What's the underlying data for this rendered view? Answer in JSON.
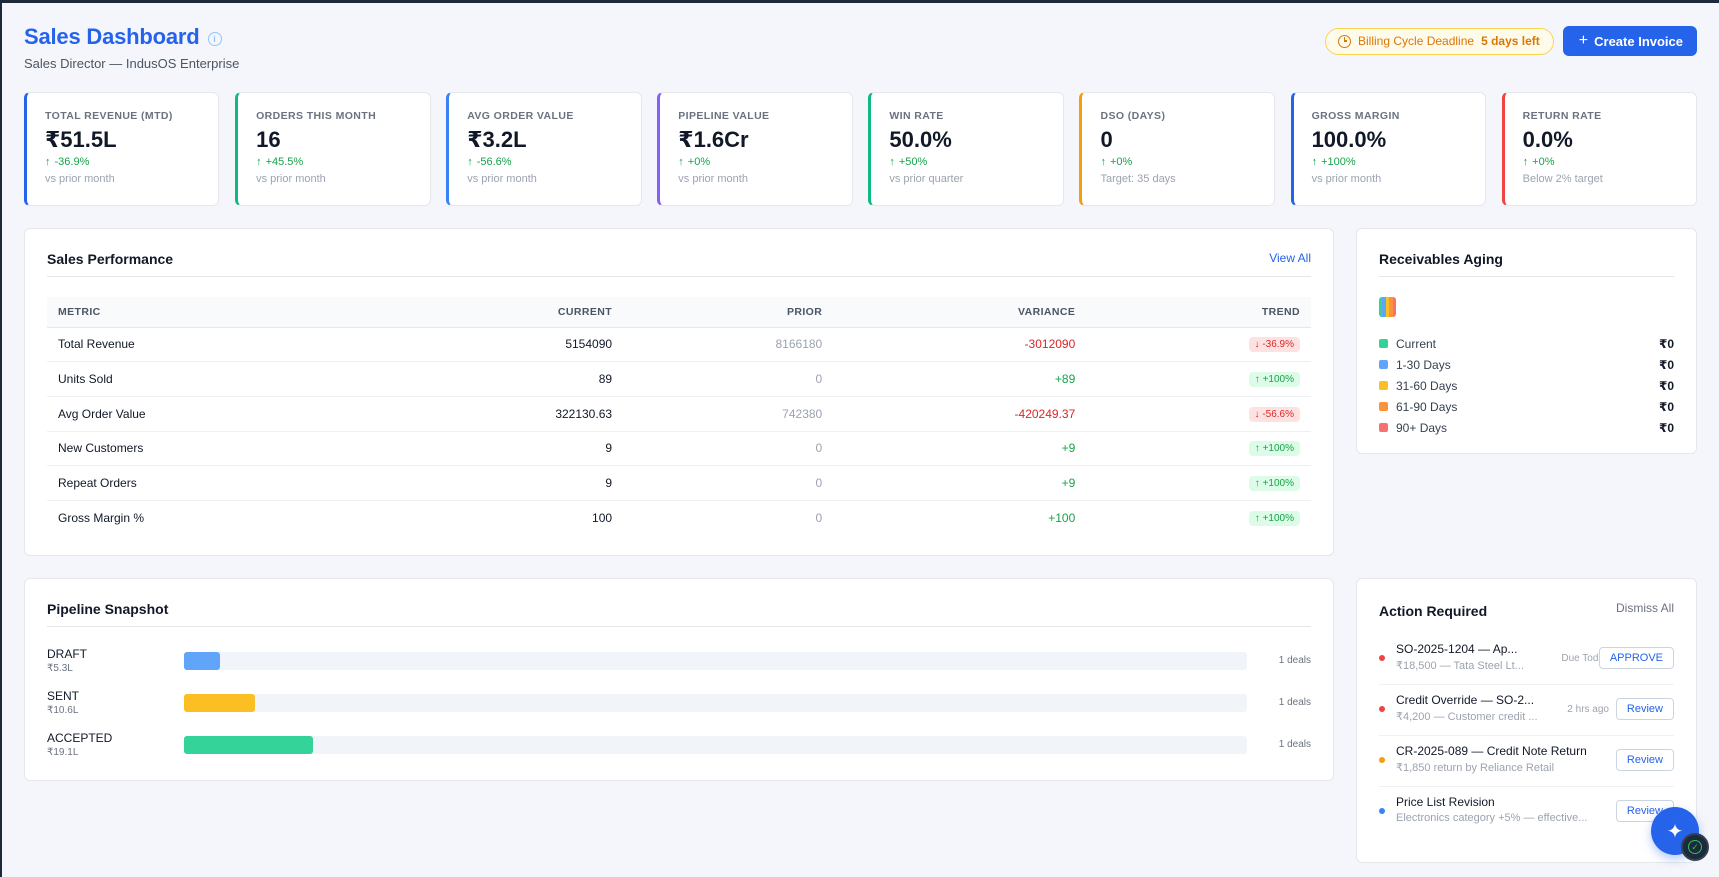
{
  "header": {
    "title": "Sales Dashboard",
    "info_icon": "info-icon",
    "subtitle": "Sales Director — IndusOS Enterprise",
    "deadline_label": "Billing Cycle Deadline",
    "deadline_value": "5 days left",
    "create_button": "Create Invoice"
  },
  "kpis": [
    {
      "label": "TOTAL REVENUE (MTD)",
      "value": "₹51.5L",
      "delta": "-36.9%",
      "note": "vs prior month",
      "color": "#2563eb"
    },
    {
      "label": "ORDERS THIS MONTH",
      "value": "16",
      "delta": "+45.5%",
      "note": "vs prior month",
      "color": "#10b981"
    },
    {
      "label": "AVG ORDER VALUE",
      "value": "₹3.2L",
      "delta": "-56.6%",
      "note": "vs prior month",
      "color": "#3b82f6"
    },
    {
      "label": "PIPELINE VALUE",
      "value": "₹1.6Cr",
      "delta": "+0%",
      "note": "vs prior month",
      "color": "#8b5cf6"
    },
    {
      "label": "WIN RATE",
      "value": "50.0%",
      "delta": "+50%",
      "note": "vs prior quarter",
      "color": "#10b981"
    },
    {
      "label": "DSO (DAYS)",
      "value": "0",
      "delta": "+0%",
      "note": "Target: 35 days",
      "color": "#f59e0b"
    },
    {
      "label": "GROSS MARGIN",
      "value": "100.0%",
      "delta": "+100%",
      "note": "vs prior month",
      "color": "#2563eb"
    },
    {
      "label": "RETURN RATE",
      "value": "0.0%",
      "delta": "+0%",
      "note": "Below 2% target",
      "color": "#ef4444"
    }
  ],
  "performance": {
    "title": "Sales Performance",
    "view_all": "View All",
    "columns": [
      "METRIC",
      "CURRENT",
      "PRIOR",
      "VARIANCE",
      "TREND"
    ],
    "rows": [
      {
        "metric": "Total Revenue",
        "current": "5154090",
        "prior": "8166180",
        "variance": "-3012090",
        "trend": "-36.9%",
        "dir": "neg"
      },
      {
        "metric": "Units Sold",
        "current": "89",
        "prior": "0",
        "variance": "+89",
        "trend": "+100%",
        "dir": "pos"
      },
      {
        "metric": "Avg Order Value",
        "current": "322130.63",
        "prior": "742380",
        "variance": "-420249.37",
        "trend": "-56.6%",
        "dir": "neg"
      },
      {
        "metric": "New Customers",
        "current": "9",
        "prior": "0",
        "variance": "+9",
        "trend": "+100%",
        "dir": "pos"
      },
      {
        "metric": "Repeat Orders",
        "current": "9",
        "prior": "0",
        "variance": "+9",
        "trend": "+100%",
        "dir": "pos"
      },
      {
        "metric": "Gross Margin %",
        "current": "100",
        "prior": "0",
        "variance": "+100",
        "trend": "+100%",
        "dir": "pos"
      }
    ]
  },
  "receivables": {
    "title": "Receivables Aging",
    "buckets": [
      {
        "label": "Current",
        "amount": "₹0",
        "color": "#34d399"
      },
      {
        "label": "1-30 Days",
        "amount": "₹0",
        "color": "#60a5fa"
      },
      {
        "label": "31-60 Days",
        "amount": "₹0",
        "color": "#fbbf24"
      },
      {
        "label": "61-90 Days",
        "amount": "₹0",
        "color": "#fb923c"
      },
      {
        "label": "90+ Days",
        "amount": "₹0",
        "color": "#f87171"
      }
    ]
  },
  "pipeline": {
    "title": "Pipeline Snapshot",
    "stages": [
      {
        "stage": "DRAFT",
        "amount": "₹5.3L",
        "count": "1 deals",
        "fill": 0.034,
        "color": "#60a5fa"
      },
      {
        "stage": "SENT",
        "amount": "₹10.6L",
        "count": "1 deals",
        "fill": 0.067,
        "color": "#fbbf24"
      },
      {
        "stage": "ACCEPTED",
        "amount": "₹19.1L",
        "count": "1 deals",
        "fill": 0.121,
        "color": "#34d399"
      }
    ]
  },
  "actions": {
    "title": "Action Required",
    "dismiss": "Dismiss All",
    "items": [
      {
        "title": "SO-2025-1204 — Ap...",
        "sub": "₹18,500 — Tata Steel Lt...",
        "time": "Due Today",
        "button": "APPROVE",
        "dot": "#ef4444"
      },
      {
        "title": "Credit Override — SO-2...",
        "sub": "₹4,200 — Customer credit ...",
        "time": "2 hrs ago",
        "button": "Review",
        "dot": "#ef4444"
      },
      {
        "title": "CR-2025-089 — Credit Note Return",
        "sub": "₹1,850 return by Reliance Retail",
        "time": "",
        "button": "Review",
        "dot": "#f59e0b"
      },
      {
        "title": "Price List Revision",
        "sub": "Electronics category +5% — effective...",
        "time": "",
        "button": "Review",
        "dot": "#3b82f6"
      }
    ]
  }
}
